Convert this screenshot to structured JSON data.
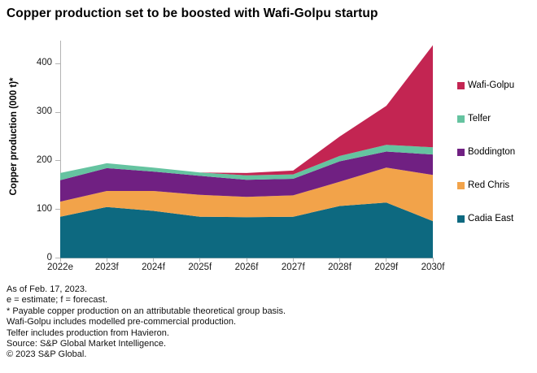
{
  "title": "Copper production set to be boosted with Wafi-Golpu startup",
  "y_axis": {
    "label": "Copper production (000 t)*"
  },
  "legend": {
    "position": "right",
    "items": [
      {
        "label": "Wafi-Golpu",
        "color": "#C32552"
      },
      {
        "label": "Telfer",
        "color": "#65C3A0"
      },
      {
        "label": "Boddington",
        "color": "#702082"
      },
      {
        "label": "Red Chris",
        "color": "#F2A34A"
      },
      {
        "label": "Cadia East",
        "color": "#0D6980"
      }
    ]
  },
  "footnotes": [
    "As of Feb. 17, 2023.",
    "e = estimate; f = forecast.",
    "* Payable copper production on an attributable theoretical group basis.",
    "Wafi-Golpu includes modelled pre-commercial production.",
    "Telfer includes production from Havieron.",
    "Source: S&P Global Market Intelligence.",
    "© 2023 S&P Global."
  ],
  "chart_data": {
    "type": "area",
    "stacked": true,
    "title": "Copper production set to be boosted with Wafi-Golpu startup",
    "xlabel": "",
    "ylabel": "Copper production (000 t)*",
    "categories": [
      "2022e",
      "2023f",
      "2024f",
      "2025f",
      "2026f",
      "2027f",
      "2028f",
      "2029f",
      "2030f"
    ],
    "series": [
      {
        "name": "Cadia East",
        "color": "#0D6980",
        "values": [
          85,
          105,
          97,
          85,
          84,
          85,
          107,
          114,
          76
        ]
      },
      {
        "name": "Red Chris",
        "color": "#F2A34A",
        "values": [
          31,
          33,
          41,
          45,
          42,
          44,
          50,
          72,
          95
        ]
      },
      {
        "name": "Boddington",
        "color": "#702082",
        "values": [
          44,
          47,
          40,
          39,
          35,
          34,
          42,
          33,
          42
        ]
      },
      {
        "name": "Telfer",
        "color": "#65C3A0",
        "values": [
          15,
          10,
          8,
          7,
          9,
          9,
          11,
          14,
          15
        ]
      },
      {
        "name": "Wafi-Golpu",
        "color": "#C32552",
        "values": [
          0,
          0,
          0,
          0,
          5,
          8,
          40,
          80,
          210
        ]
      }
    ],
    "stacked_totals": [
      175,
      195,
      186,
      176,
      175,
      180,
      250,
      313,
      438
    ],
    "ylim": [
      0,
      400
    ],
    "yticks": [
      0,
      100,
      200,
      300,
      400
    ],
    "grid": false,
    "legend_position": "right"
  }
}
